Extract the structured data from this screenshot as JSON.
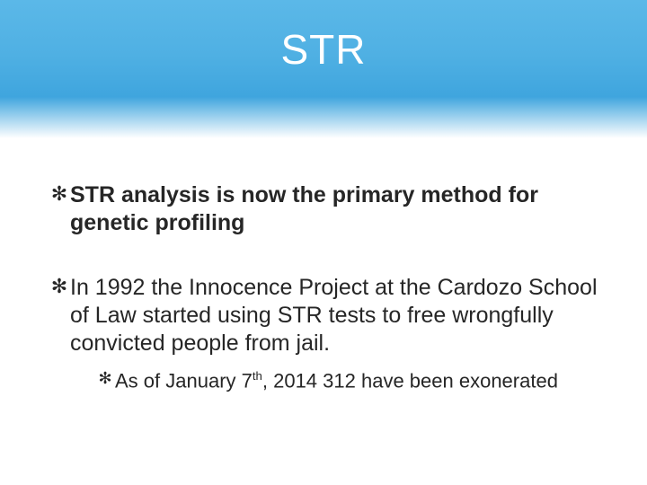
{
  "slide": {
    "title": "STR",
    "header_gradient_top": "#5bb8e8",
    "header_gradient_mid": "#3fa5de",
    "header_gradient_bottom": "#ffffff",
    "title_color": "#ffffff",
    "title_fontsize": 46,
    "body_color": "#262626",
    "bullet_marker": "✻",
    "bullets": [
      {
        "text": "STR analysis is now the primary method for genetic profiling",
        "bold": true,
        "fontsize": 25,
        "sub": []
      },
      {
        "text": "In 1992 the Innocence Project at the Cardozo School of Law started using STR tests to free wrongfully convicted people from jail.",
        "bold": false,
        "fontsize": 25,
        "sub": [
          {
            "text_before_sup": "As of January 7",
            "sup": "th",
            "text_after_sup": ", 2014 312 have been exonerated",
            "fontsize": 22
          }
        ]
      }
    ]
  }
}
